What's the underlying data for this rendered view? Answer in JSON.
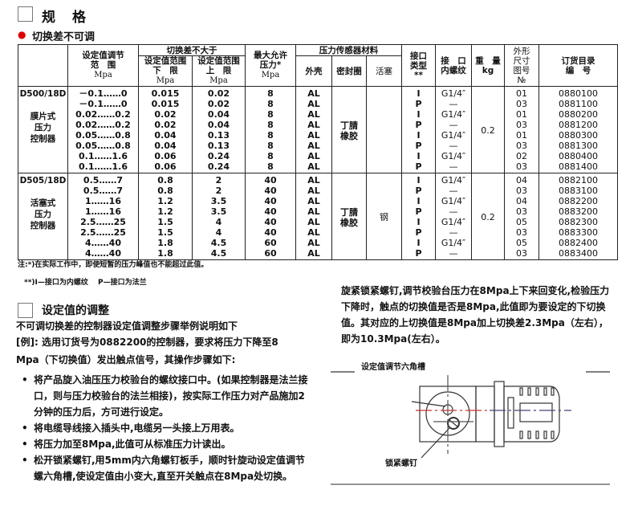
{
  "spec": {
    "title": "规　格",
    "subtitle": "切换差不可调",
    "headers": {
      "col_model": "",
      "range": [
        "设定值调节",
        "范　围",
        "Mpa"
      ],
      "diff_group": "切换差不大于",
      "diff_low": [
        "设定值范围",
        "下　限",
        "Mpa"
      ],
      "diff_high": [
        "设定值范围",
        "上　限",
        "Mpa"
      ],
      "max_pressure": [
        "最大允许",
        "压力*",
        "Mpa"
      ],
      "material_group": "压力传感器材料",
      "housing": "外壳",
      "seal": "密封圈",
      "piston": "活塞",
      "port_type": [
        "接口",
        "类型",
        "**"
      ],
      "thread": [
        "接　口",
        "内螺纹"
      ],
      "weight": [
        "重　量",
        "kg"
      ],
      "dim": [
        "外形",
        "尺寸",
        "图号",
        "№"
      ],
      "order": [
        "订货目录",
        "编　号"
      ]
    },
    "groups": [
      {
        "model": "D500/18D",
        "type": [
          "膜片式",
          "压力",
          "控制器"
        ],
        "seal": [
          "丁腈",
          "橡胶"
        ],
        "piston": "",
        "weight": "0.2",
        "rows": [
          [
            "－0.1……0",
            "0.015",
            "0.02",
            "8",
            "AL",
            "I",
            "G1/4″",
            "01",
            "0880100"
          ],
          [
            "－0.1……0",
            "0.015",
            "0.02",
            "8",
            "AL",
            "P",
            "—",
            "03",
            "0881100"
          ],
          [
            "0.02……0.2",
            "0.02",
            "0.04",
            "8",
            "AL",
            "I",
            "G1/4″",
            "01",
            "0880200"
          ],
          [
            "0.02……0.2",
            "0.02",
            "0.04",
            "8",
            "AL",
            "P",
            "—",
            "03",
            "0881200"
          ],
          [
            "0.05……0.8",
            "0.04",
            "0.13",
            "8",
            "AL",
            "I",
            "G1/4″",
            "01",
            "0880300"
          ],
          [
            "0.05……0.8",
            "0.04",
            "0.13",
            "8",
            "AL",
            "P",
            "—",
            "03",
            "0881300"
          ],
          [
            "0.1……1.6",
            "0.06",
            "0.24",
            "8",
            "AL",
            "I",
            "G1/4″",
            "02",
            "0880400"
          ],
          [
            "0.1……1.6",
            "0.06",
            "0.24",
            "8",
            "AL",
            "P",
            "—",
            "03",
            "0881400"
          ]
        ]
      },
      {
        "model": "D505/18D",
        "type": [
          "活塞式",
          "压力",
          "控制器"
        ],
        "seal": [
          "丁腈",
          "橡胶"
        ],
        "piston": "钢",
        "weight": "0.2",
        "rows": [
          [
            "0.5……7",
            "0.8",
            "2",
            "40",
            "AL",
            "I",
            "G1/4″",
            "04",
            "0882100"
          ],
          [
            "0.5……7",
            "0.8",
            "2",
            "40",
            "AL",
            "P",
            "—",
            "03",
            "0883100"
          ],
          [
            "1……16",
            "1.2",
            "3.5",
            "40",
            "AL",
            "I",
            "G1/4″",
            "04",
            "0882200"
          ],
          [
            "1……16",
            "1.2",
            "3.5",
            "40",
            "AL",
            "P",
            "—",
            "03",
            "0883200"
          ],
          [
            "2.5……25",
            "1.5",
            "4",
            "40",
            "AL",
            "I",
            "G1/4″",
            "05",
            "0882300"
          ],
          [
            "2.5……25",
            "1.5",
            "4",
            "40",
            "AL",
            "P",
            "—",
            "03",
            "0883300"
          ],
          [
            "4……40",
            "1.8",
            "4.5",
            "60",
            "AL",
            "I",
            "G1/4″",
            "05",
            "0882400"
          ],
          [
            "4……40",
            "1.8",
            "4.5",
            "60",
            "AL",
            "P",
            "—",
            "03",
            "0883400"
          ]
        ]
      }
    ],
    "note1": "注:*)在实际工作中，即使短暂的压力峰值也不能超过此值。",
    "note2": "**)I—接口为内螺纹　 P—接口为法兰"
  },
  "adjust": {
    "title": "设定值的调整",
    "intro": "不可调切换差的控制器设定值调整步骤举例说明如下",
    "example_1": "[例]: 选用订货号为0882200的控制器，要求将压力下降至8",
    "example_2": "Mpa（下切换值）发出触点信号，其操作步骤如下:",
    "steps": [
      "将产品旋入油压压力校验台的螺纹接口中。(如果控制器是法兰接口，则与压力校验台的法兰相接)，按实际工作压力对产品施加2分钟的压力后，方可进行设定。",
      "将电缆导线接入插头中,电缆另一头接上万用表。",
      "将压力加至8Mpa,此值可从标准压力计读出。",
      "松开锁紧螺钉,用5mm内六角螺钉板手，顺时针旋动设定值调节螺六角槽,使设定值由小变大,直至开关触点在8Mpa处切换。"
    ],
    "continued": "旋紧锁紧螺钉,调节校验台压力在8Mpa上下来回变化,检验压力下降时，触点的切换值是否是8Mpa,此值即为要设定的下切换值。其对应的上切换值是8Mpa加上切换差2.3Mpa（左右），即为10.3Mpa(左右）。",
    "diagram_label_top": "设定值调节六角槽",
    "diagram_label_bottom": "锁紧螺钉"
  },
  "colors": {
    "bullet": "#dd0000",
    "text": "#111111",
    "border": "#222222"
  }
}
